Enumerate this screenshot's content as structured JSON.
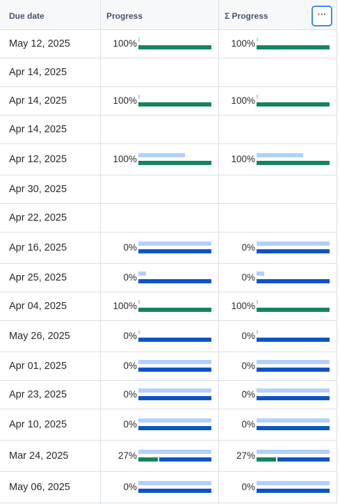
{
  "columns": {
    "due_date": "Due date",
    "progress": "Progress",
    "sum_progress": "Σ Progress",
    "more_label": "···"
  },
  "colors": {
    "complete_fill": "#12855c",
    "remaining_fill": "#0c55c9",
    "estimate_bar": "#b3d0fb"
  },
  "rows": [
    {
      "due": "May 12, 2025",
      "progress": "100%",
      "progress_value": 1.0,
      "estimate": 0.0,
      "sum_progress": "100%"
    },
    {
      "due": "Apr 14, 2025",
      "progress": "",
      "progress_value": null,
      "estimate": null,
      "sum_progress": ""
    },
    {
      "due": "Apr 14, 2025",
      "progress": "100%",
      "progress_value": 1.0,
      "estimate": 0.0,
      "sum_progress": "100%"
    },
    {
      "due": "Apr 14, 2025",
      "progress": "",
      "progress_value": null,
      "estimate": null,
      "sum_progress": ""
    },
    {
      "due": "Apr 12, 2025",
      "progress": "100%",
      "progress_value": 1.0,
      "estimate": 0.64,
      "sum_progress": "100%"
    },
    {
      "due": "Apr 30, 2025",
      "progress": "",
      "progress_value": null,
      "estimate": null,
      "sum_progress": ""
    },
    {
      "due": "Apr 22, 2025",
      "progress": "",
      "progress_value": null,
      "estimate": null,
      "sum_progress": ""
    },
    {
      "due": "Apr 16, 2025",
      "progress": "0%",
      "progress_value": 0.0,
      "estimate": 1.0,
      "sum_progress": "0%"
    },
    {
      "due": "Apr 25, 2025",
      "progress": "0%",
      "progress_value": 0.0,
      "estimate": 0.1,
      "sum_progress": "0%"
    },
    {
      "due": "Apr 04, 2025",
      "progress": "100%",
      "progress_value": 1.0,
      "estimate": 0.0,
      "sum_progress": "100%"
    },
    {
      "due": "May 26, 2025",
      "progress": "0%",
      "progress_value": 0.0,
      "estimate": 0.0,
      "sum_progress": "0%"
    },
    {
      "due": "Apr 01, 2025",
      "progress": "0%",
      "progress_value": 0.0,
      "estimate": 1.0,
      "sum_progress": "0%"
    },
    {
      "due": "Apr 23, 2025",
      "progress": "0%",
      "progress_value": 0.0,
      "estimate": 1.0,
      "sum_progress": "0%"
    },
    {
      "due": "Apr 10, 2025",
      "progress": "0%",
      "progress_value": 0.0,
      "estimate": 1.0,
      "sum_progress": "0%"
    },
    {
      "due": "Mar 24, 2025",
      "progress": "27%",
      "progress_value": 0.27,
      "estimate": 1.0,
      "sum_progress": "27%"
    },
    {
      "due": "May 06, 2025",
      "progress": "0%",
      "progress_value": 0.0,
      "estimate": 1.0,
      "sum_progress": "0%"
    }
  ]
}
